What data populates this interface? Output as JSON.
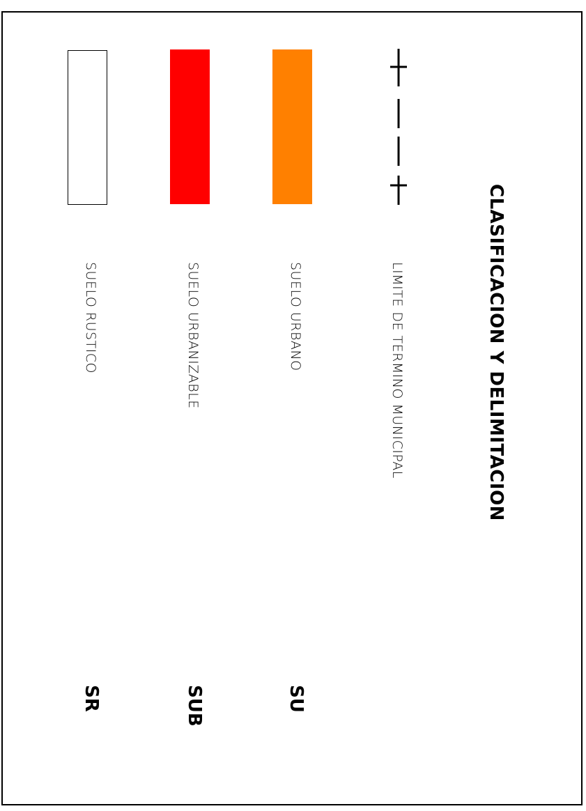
{
  "title": "CLASIFICACION Y DELIMITACION",
  "legend": [
    {
      "label": "LIMITE DE TERMINO MUNICIPAL",
      "code": "",
      "symbol": "boundary-line-icon"
    },
    {
      "label": "SUELO URBANO",
      "code": "SU",
      "color": "#ff8000"
    },
    {
      "label": "SUELO URBANIZABLE",
      "code": "SUB",
      "color": "#ff0000"
    },
    {
      "label": "SUELO RUSTICO",
      "code": "SR",
      "color": "#ffffff"
    }
  ]
}
